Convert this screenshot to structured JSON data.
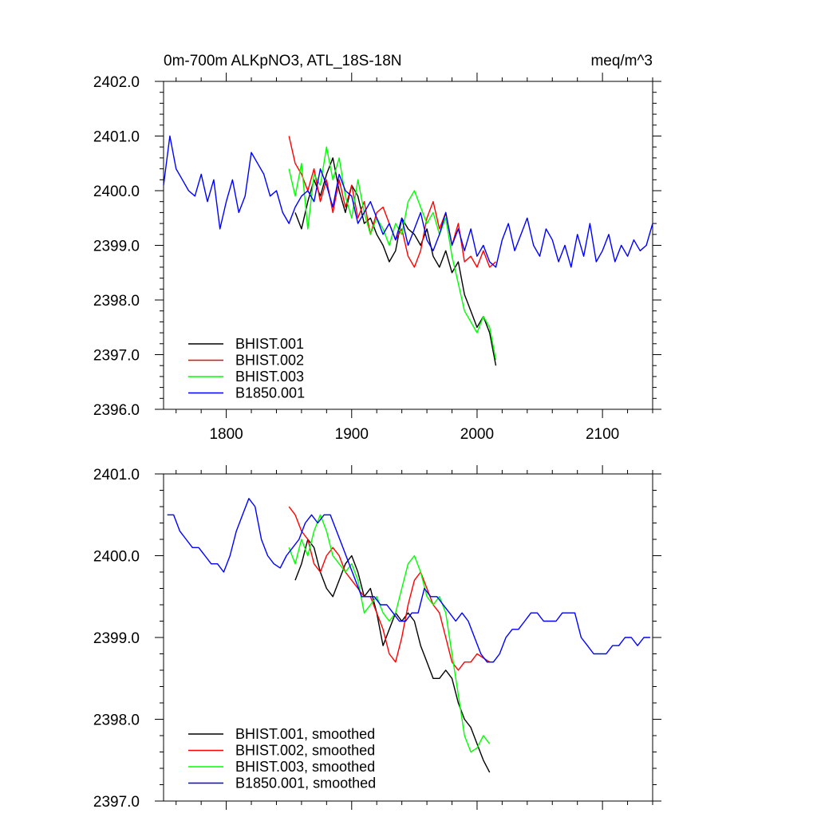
{
  "chart_data": [
    {
      "type": "line",
      "title_left": "0m-700m ALKpNO3, ATL_18S-18N",
      "title_right": "meq/m^3",
      "xlim": [
        1750,
        2140
      ],
      "ylim": [
        2396.0,
        2402.0
      ],
      "x_ticks": [
        1800,
        1900,
        2000,
        2100
      ],
      "x_tick_labels": [
        "1800",
        "1900",
        "2000",
        "2100"
      ],
      "y_ticks": [
        2396.0,
        2397.0,
        2398.0,
        2399.0,
        2400.0,
        2401.0,
        2402.0
      ],
      "y_tick_labels": [
        "2396.0",
        "2397.0",
        "2398.0",
        "2399.0",
        "2400.0",
        "2401.0",
        "2402.0"
      ],
      "legend_position": "bottom-left",
      "series": [
        {
          "name": "BHIST.001",
          "color": "#000000",
          "x": [
            1855,
            1860,
            1865,
            1870,
            1875,
            1880,
            1885,
            1890,
            1895,
            1900,
            1905,
            1910,
            1915,
            1920,
            1925,
            1930,
            1935,
            1940,
            1945,
            1950,
            1955,
            1960,
            1965,
            1970,
            1975,
            1980,
            1985,
            1990,
            1995,
            2000,
            2005,
            2010,
            2015
          ],
          "y": [
            2399.6,
            2399.3,
            2399.8,
            2400.2,
            2399.9,
            2400.3,
            2400.6,
            2400.0,
            2399.6,
            2400.1,
            2399.9,
            2399.4,
            2399.5,
            2399.2,
            2399.0,
            2398.7,
            2398.9,
            2399.5,
            2399.3,
            2399.2,
            2399.0,
            2399.3,
            2398.8,
            2398.6,
            2398.9,
            2398.5,
            2398.7,
            2398.1,
            2397.8,
            2397.5,
            2397.7,
            2397.4,
            2396.8
          ]
        },
        {
          "name": "BHIST.002",
          "color": "#ff0000",
          "x": [
            1850,
            1855,
            1860,
            1865,
            1870,
            1875,
            1880,
            1885,
            1890,
            1895,
            1900,
            1905,
            1910,
            1915,
            1920,
            1925,
            1930,
            1935,
            1940,
            1945,
            1950,
            1955,
            1960,
            1965,
            1970,
            1975,
            1980,
            1985,
            1990,
            1995,
            2000,
            2005,
            2010,
            2015
          ],
          "y": [
            2401.0,
            2400.5,
            2400.3,
            2400.0,
            2400.4,
            2399.8,
            2400.2,
            2399.6,
            2400.2,
            2399.7,
            2400.1,
            2399.5,
            2399.8,
            2399.2,
            2399.6,
            2399.7,
            2399.4,
            2399.1,
            2399.3,
            2398.8,
            2398.6,
            2398.9,
            2399.5,
            2399.8,
            2399.3,
            2399.6,
            2399.0,
            2399.4,
            2398.7,
            2398.8,
            2398.6,
            2398.9,
            2398.6,
            2398.7
          ]
        },
        {
          "name": "BHIST.003",
          "color": "#00ff00",
          "x": [
            1850,
            1855,
            1860,
            1865,
            1870,
            1875,
            1880,
            1885,
            1890,
            1895,
            1900,
            1905,
            1910,
            1915,
            1920,
            1925,
            1930,
            1935,
            1940,
            1945,
            1950,
            1955,
            1960,
            1965,
            1970,
            1975,
            1980,
            1985,
            1990,
            1995,
            2000,
            2005,
            2010,
            2015
          ],
          "y": [
            2400.4,
            2399.9,
            2400.5,
            2399.3,
            2400.3,
            2400.1,
            2400.8,
            2400.2,
            2400.6,
            2399.9,
            2399.5,
            2400.2,
            2399.6,
            2399.2,
            2399.5,
            2399.3,
            2399.0,
            2399.4,
            2399.2,
            2399.8,
            2400.0,
            2399.7,
            2399.4,
            2399.6,
            2399.2,
            2399.5,
            2398.8,
            2398.3,
            2397.8,
            2397.6,
            2397.4,
            2397.7,
            2397.5,
            2396.9
          ]
        },
        {
          "name": "B1850.001",
          "color": "#0000ff",
          "x": [
            1750,
            1755,
            1760,
            1765,
            1770,
            1775,
            1780,
            1785,
            1790,
            1795,
            1800,
            1805,
            1810,
            1815,
            1820,
            1825,
            1830,
            1835,
            1840,
            1845,
            1850,
            1855,
            1860,
            1865,
            1870,
            1875,
            1880,
            1885,
            1890,
            1895,
            1900,
            1905,
            1910,
            1915,
            1920,
            1925,
            1930,
            1935,
            1940,
            1945,
            1950,
            1955,
            1960,
            1965,
            1970,
            1975,
            1980,
            1985,
            1990,
            1995,
            2000,
            2005,
            2010,
            2015,
            2020,
            2025,
            2030,
            2035,
            2040,
            2045,
            2050,
            2055,
            2060,
            2065,
            2070,
            2075,
            2080,
            2085,
            2090,
            2095,
            2100,
            2105,
            2110,
            2115,
            2120,
            2125,
            2130,
            2135,
            2140
          ],
          "y": [
            2400.1,
            2401.0,
            2400.4,
            2400.2,
            2400.0,
            2399.9,
            2400.3,
            2399.8,
            2400.2,
            2399.3,
            2399.8,
            2400.2,
            2399.6,
            2399.9,
            2400.7,
            2400.5,
            2400.3,
            2399.9,
            2400.0,
            2399.6,
            2399.4,
            2399.7,
            2399.9,
            2400.0,
            2399.8,
            2400.4,
            2400.1,
            2399.7,
            2400.3,
            2400.0,
            2399.9,
            2399.4,
            2399.6,
            2399.8,
            2399.5,
            2399.2,
            2399.4,
            2399.1,
            2399.5,
            2399.0,
            2399.3,
            2399.6,
            2399.1,
            2398.9,
            2399.2,
            2399.6,
            2399.0,
            2399.3,
            2398.9,
            2399.3,
            2398.8,
            2399.0,
            2398.7,
            2398.6,
            2399.1,
            2399.4,
            2398.9,
            2399.2,
            2399.5,
            2399.0,
            2398.8,
            2399.3,
            2399.1,
            2398.7,
            2399.0,
            2398.6,
            2399.2,
            2398.8,
            2399.4,
            2398.7,
            2398.9,
            2399.2,
            2398.7,
            2399.0,
            2398.8,
            2399.1,
            2398.9,
            2399.0,
            2399.4
          ]
        }
      ]
    },
    {
      "type": "line",
      "xlim": [
        1750,
        2140
      ],
      "ylim": [
        2397.0,
        2401.0
      ],
      "x_ticks": [
        1800,
        1900,
        2000,
        2100
      ],
      "y_ticks": [
        2397.0,
        2398.0,
        2399.0,
        2400.0,
        2401.0
      ],
      "y_tick_labels": [
        "2397.0",
        "2398.0",
        "2399.0",
        "2400.0",
        "2401.0"
      ],
      "legend_position": "bottom-left",
      "series": [
        {
          "name": "BHIST.001, smoothed",
          "color": "#000000",
          "x": [
            1855,
            1860,
            1865,
            1870,
            1875,
            1880,
            1885,
            1890,
            1895,
            1900,
            1905,
            1910,
            1915,
            1920,
            1925,
            1930,
            1935,
            1940,
            1945,
            1950,
            1955,
            1960,
            1965,
            1970,
            1975,
            1980,
            1985,
            1990,
            1995,
            2000,
            2005,
            2010
          ],
          "y": [
            2399.7,
            2399.9,
            2400.2,
            2400.1,
            2399.8,
            2399.6,
            2399.5,
            2399.7,
            2399.9,
            2400.0,
            2399.8,
            2399.5,
            2399.6,
            2399.3,
            2398.9,
            2399.1,
            2399.3,
            2399.2,
            2399.3,
            2399.2,
            2398.9,
            2398.7,
            2398.5,
            2398.5,
            2398.6,
            2398.5,
            2398.2,
            2398.0,
            2397.9,
            2397.7,
            2397.5,
            2397.35
          ]
        },
        {
          "name": "BHIST.002, smoothed",
          "color": "#ff0000",
          "x": [
            1850,
            1855,
            1860,
            1865,
            1870,
            1875,
            1880,
            1885,
            1890,
            1895,
            1900,
            1905,
            1910,
            1915,
            1920,
            1925,
            1930,
            1935,
            1940,
            1945,
            1950,
            1955,
            1960,
            1965,
            1970,
            1975,
            1980,
            1985,
            1990,
            1995,
            2000,
            2005,
            2010
          ],
          "y": [
            2400.6,
            2400.5,
            2400.3,
            2400.2,
            2399.9,
            2399.8,
            2400.0,
            2400.1,
            2400.0,
            2399.8,
            2399.7,
            2399.6,
            2399.5,
            2399.5,
            2399.3,
            2399.1,
            2398.8,
            2398.7,
            2399.0,
            2399.4,
            2399.7,
            2399.8,
            2399.6,
            2399.4,
            2399.3,
            2399.0,
            2398.7,
            2398.6,
            2398.7,
            2398.7,
            2398.8,
            2398.75,
            2398.7
          ]
        },
        {
          "name": "BHIST.003, smoothed",
          "color": "#00ff00",
          "x": [
            1850,
            1855,
            1860,
            1865,
            1870,
            1875,
            1880,
            1885,
            1890,
            1895,
            1900,
            1905,
            1910,
            1915,
            1920,
            1925,
            1930,
            1935,
            1940,
            1945,
            1950,
            1955,
            1960,
            1965,
            1970,
            1975,
            1980,
            1985,
            1990,
            1995,
            2000,
            2005,
            2010
          ],
          "y": [
            2400.1,
            2399.9,
            2400.2,
            2400.0,
            2400.3,
            2400.5,
            2400.3,
            2400.0,
            2399.9,
            2399.8,
            2399.9,
            2399.7,
            2399.3,
            2399.4,
            2399.5,
            2399.3,
            2399.2,
            2399.3,
            2399.6,
            2399.9,
            2400.0,
            2399.8,
            2399.5,
            2399.4,
            2399.5,
            2399.3,
            2398.8,
            2398.3,
            2397.8,
            2397.6,
            2397.65,
            2397.8,
            2397.7
          ]
        },
        {
          "name": "B1850.001, smoothed",
          "color": "#0000ff",
          "x": [
            1753,
            1758,
            1763,
            1768,
            1773,
            1778,
            1783,
            1788,
            1793,
            1798,
            1803,
            1808,
            1813,
            1818,
            1823,
            1828,
            1833,
            1838,
            1843,
            1848,
            1853,
            1858,
            1863,
            1868,
            1873,
            1878,
            1883,
            1888,
            1893,
            1898,
            1903,
            1908,
            1913,
            1918,
            1923,
            1928,
            1933,
            1938,
            1943,
            1948,
            1953,
            1958,
            1963,
            1968,
            1973,
            1978,
            1983,
            1988,
            1993,
            1998,
            2003,
            2008,
            2013,
            2018,
            2023,
            2028,
            2033,
            2038,
            2043,
            2048,
            2053,
            2058,
            2063,
            2068,
            2073,
            2078,
            2083,
            2088,
            2093,
            2098,
            2103,
            2108,
            2113,
            2118,
            2123,
            2128,
            2133,
            2138
          ],
          "y": [
            2400.5,
            2400.5,
            2400.3,
            2400.2,
            2400.1,
            2400.1,
            2400.0,
            2399.9,
            2399.9,
            2399.8,
            2400.0,
            2400.3,
            2400.5,
            2400.7,
            2400.6,
            2400.2,
            2400.0,
            2399.9,
            2399.85,
            2400.0,
            2400.1,
            2400.2,
            2400.4,
            2400.5,
            2400.4,
            2400.5,
            2400.5,
            2400.3,
            2400.1,
            2399.9,
            2399.7,
            2399.5,
            2399.5,
            2399.5,
            2399.4,
            2399.4,
            2399.3,
            2399.2,
            2399.2,
            2399.3,
            2399.3,
            2399.6,
            2399.5,
            2399.5,
            2399.4,
            2399.3,
            2399.2,
            2399.3,
            2399.2,
            2399.0,
            2398.8,
            2398.7,
            2398.7,
            2398.8,
            2399.0,
            2399.1,
            2399.1,
            2399.2,
            2399.3,
            2399.3,
            2399.2,
            2399.2,
            2399.2,
            2399.3,
            2399.3,
            2399.3,
            2399.0,
            2398.9,
            2398.8,
            2398.8,
            2398.8,
            2398.9,
            2398.9,
            2399.0,
            2399.0,
            2398.9,
            2399.0,
            2399.0
          ]
        }
      ]
    }
  ]
}
